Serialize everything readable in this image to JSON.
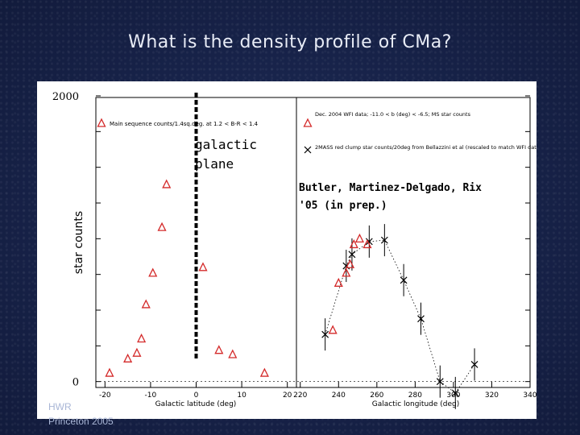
{
  "slide": {
    "title": "What is the density profile of CMa?",
    "footer_line1": "HWR",
    "footer_line2": "Princeton 2005"
  },
  "figure": {
    "galactic_plane_label": "galactic plane",
    "citation_line1": "Butler, Martinez-Delgado, Rix",
    "citation_line2": "'05 (in prep.)"
  },
  "chart_data": [
    {
      "type": "scatter",
      "xlabel": "Galactic latitude (deg)",
      "ylabel": "star counts",
      "xlim": [
        -22,
        22
      ],
      "ylim": [
        -30,
        2000
      ],
      "x_ticks": [
        "-20",
        "-10",
        "0",
        "10",
        "20"
      ],
      "y_ticks": [
        "2000",
        "0"
      ],
      "series": [
        {
          "name": "Main sequence counts/1.4sq.deg. at 1.2 < B-R < 1.4",
          "marker": "triangle",
          "color": "#d42a2a",
          "x": [
            -19,
            -15,
            -13,
            -12,
            -11,
            -9.5,
            -7.5,
            -6.5,
            1.5,
            5,
            8,
            15
          ],
          "y": [
            60,
            160,
            200,
            300,
            540,
            760,
            1080,
            1380,
            800,
            220,
            190,
            60
          ]
        }
      ],
      "reference_line": {
        "x": 0,
        "label": "galactic plane",
        "style": "dashed"
      }
    },
    {
      "type": "scatter",
      "xlabel": "Galactic longitude (deg)",
      "xlim": [
        218,
        340
      ],
      "x_ticks": [
        "220",
        "240",
        "260",
        "280",
        "300",
        "320",
        "340"
      ],
      "ylim": [
        -30,
        2000
      ],
      "series": [
        {
          "name": "Dec. 2004 WFI data; -11.0 < b (deg) < -6.5; MS star counts",
          "marker": "triangle",
          "color": "#d42a2a",
          "x": [
            237,
            240,
            244,
            246,
            248,
            251,
            255
          ],
          "y": [
            360,
            690,
            760,
            820,
            960,
            1000,
            960
          ]
        },
        {
          "name": "2MASS red clump star counts/20deg from Bellazzini et al (rescaled to match WFI data)",
          "marker": "x",
          "color": "#000000",
          "x": [
            233,
            244,
            247,
            256,
            264,
            274,
            283,
            293,
            301,
            311
          ],
          "y": [
            330,
            810,
            890,
            980,
            990,
            710,
            440,
            0,
            -80,
            120
          ]
        }
      ]
    }
  ]
}
